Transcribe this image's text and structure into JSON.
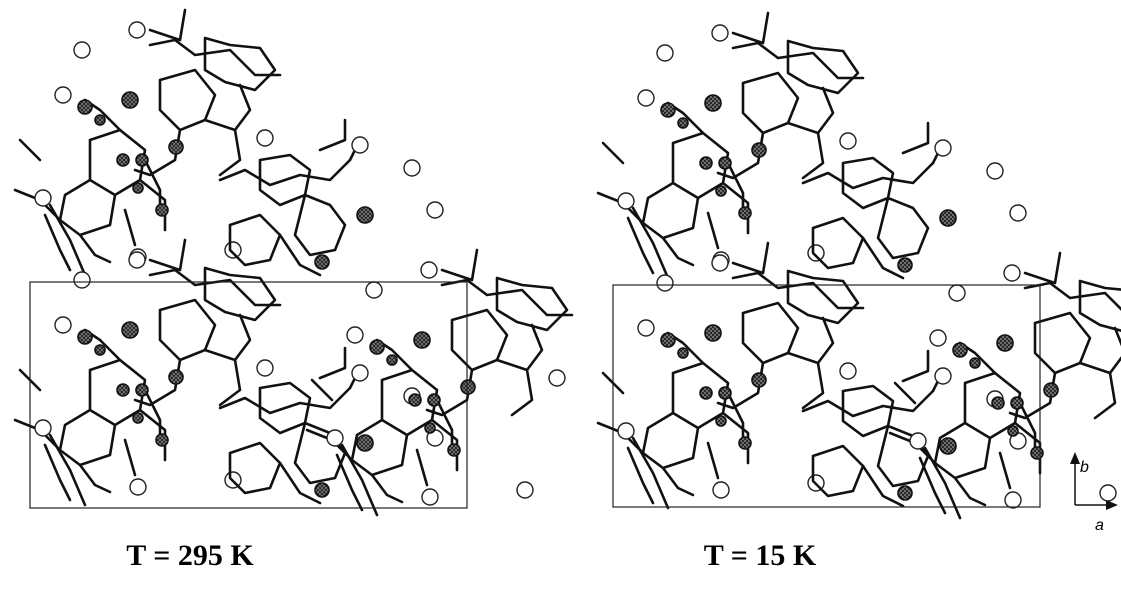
{
  "panels": [
    {
      "label": "T = 295 K"
    },
    {
      "label": "T = 15 K"
    }
  ],
  "axes": {
    "vertical": "b",
    "horizontal": "a"
  }
}
